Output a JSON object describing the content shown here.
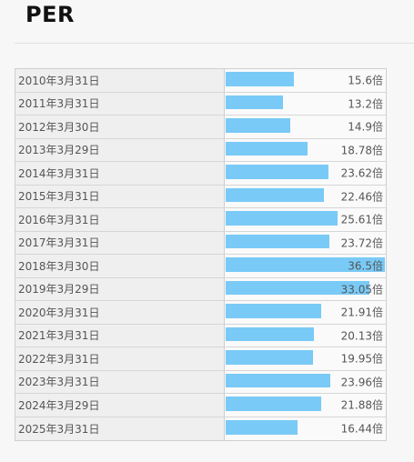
{
  "page": {
    "title": "PER"
  },
  "chart_data": {
    "type": "bar",
    "orientation": "horizontal",
    "categories": [
      "2010年3月31日",
      "2011年3月31日",
      "2012年3月30日",
      "2013年3月29日",
      "2014年3月31日",
      "2015年3月31日",
      "2016年3月31日",
      "2017年3月31日",
      "2018年3月30日",
      "2019年3月29日",
      "2020年3月31日",
      "2021年3月31日",
      "2022年3月31日",
      "2023年3月31日",
      "2024年3月29日",
      "2025年3月31日"
    ],
    "values": [
      15.6,
      13.2,
      14.9,
      18.78,
      23.62,
      22.46,
      25.61,
      23.72,
      36.5,
      33.05,
      21.91,
      20.13,
      19.95,
      23.96,
      21.88,
      16.44
    ],
    "value_labels": [
      "15.6倍",
      "13.2倍",
      "14.9倍",
      "18.78倍",
      "23.62倍",
      "22.46倍",
      "25.61倍",
      "23.72倍",
      "36.5倍",
      "33.05倍",
      "21.91倍",
      "20.13倍",
      "19.95倍",
      "23.96倍",
      "21.88倍",
      "16.44倍"
    ],
    "unit": "倍",
    "xlim": [
      0,
      36.5
    ],
    "bar_color": "#79caf7"
  }
}
